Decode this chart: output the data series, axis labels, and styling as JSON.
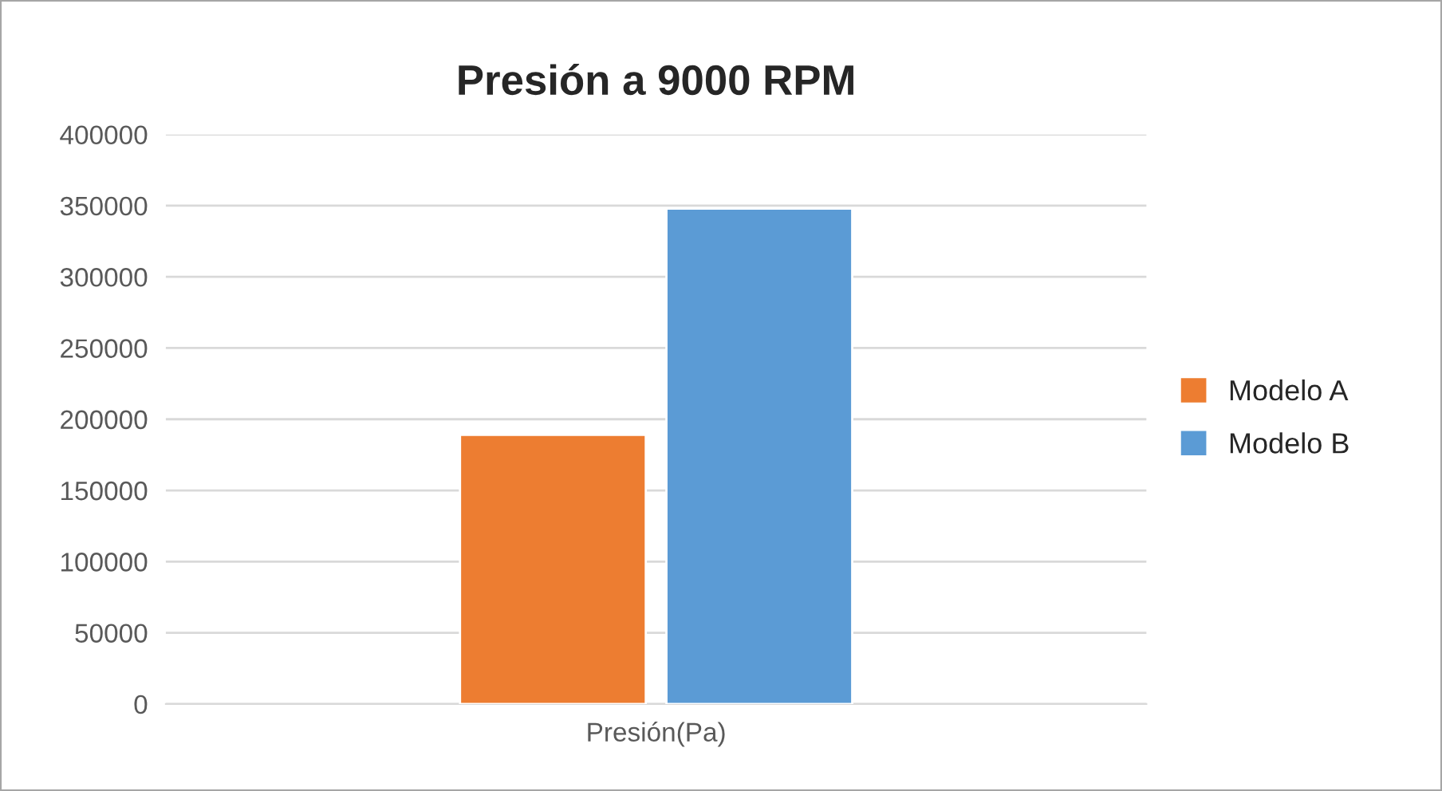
{
  "chart_data": {
    "type": "bar",
    "title": "Presión a 9000 RPM",
    "categories": [
      "Presión(Pa)"
    ],
    "series": [
      {
        "name": "Modelo A",
        "color": "#ed7d31",
        "values": [
          189000
        ]
      },
      {
        "name": "Modelo B",
        "color": "#5b9bd5",
        "values": [
          348000
        ]
      }
    ],
    "ylim": [
      0,
      400000
    ],
    "yticks": [
      0,
      50000,
      100000,
      150000,
      200000,
      250000,
      300000,
      350000,
      400000
    ],
    "grid": "y",
    "legend": "right"
  }
}
